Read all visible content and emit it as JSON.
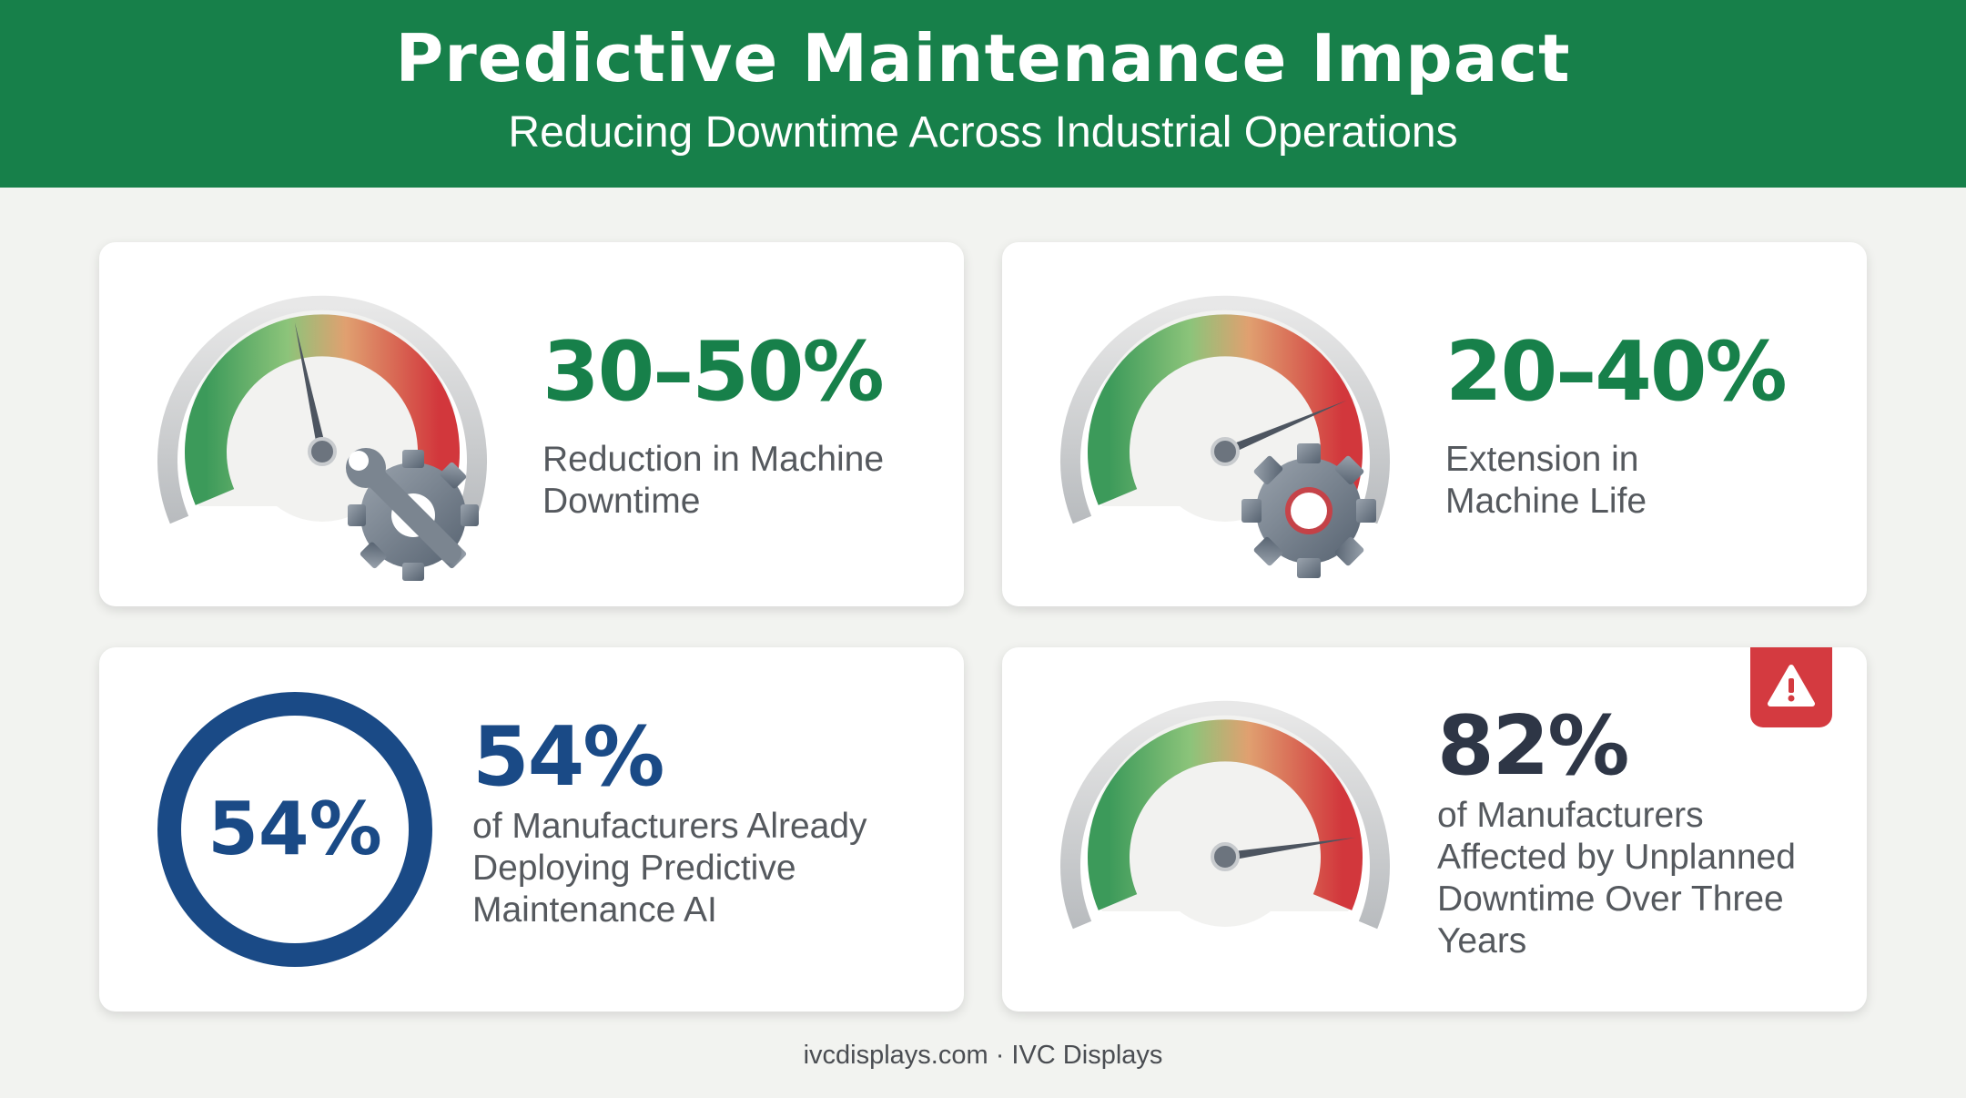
{
  "header": {
    "title": "Predictive Maintenance Impact",
    "subtitle": "Reducing Downtime Across Industrial Operations"
  },
  "cards": [
    {
      "stat": "30–50%",
      "label_lines": [
        "Reduction in Machine",
        "Downtime"
      ],
      "icon": "gear-wrench-icon",
      "needle_level": 0.45
    },
    {
      "stat": "20–40%",
      "label_lines": [
        "Extension in",
        "Machine Life"
      ],
      "icon": "gear-icon",
      "needle_level": 0.78
    },
    {
      "stat": "54%",
      "ring_value": "54%",
      "label_lines": [
        "of Manufacturers Already",
        "Deploying Predictive",
        "Maintenance AI"
      ]
    },
    {
      "stat": "82%",
      "label_lines": [
        "of Manufacturers",
        "Affected by Unplanned",
        "Downtime Over Three",
        "Years"
      ],
      "icon": "warning-icon",
      "needle_level": 0.84
    }
  ],
  "footer": "ivcdisplays.com · IVC Displays",
  "colors": {
    "header_green": "#17804a",
    "stat_green": "#17804a",
    "stat_blue": "#1a4a86",
    "stat_dark": "#2e3646",
    "alert_red": "#d43a40"
  }
}
